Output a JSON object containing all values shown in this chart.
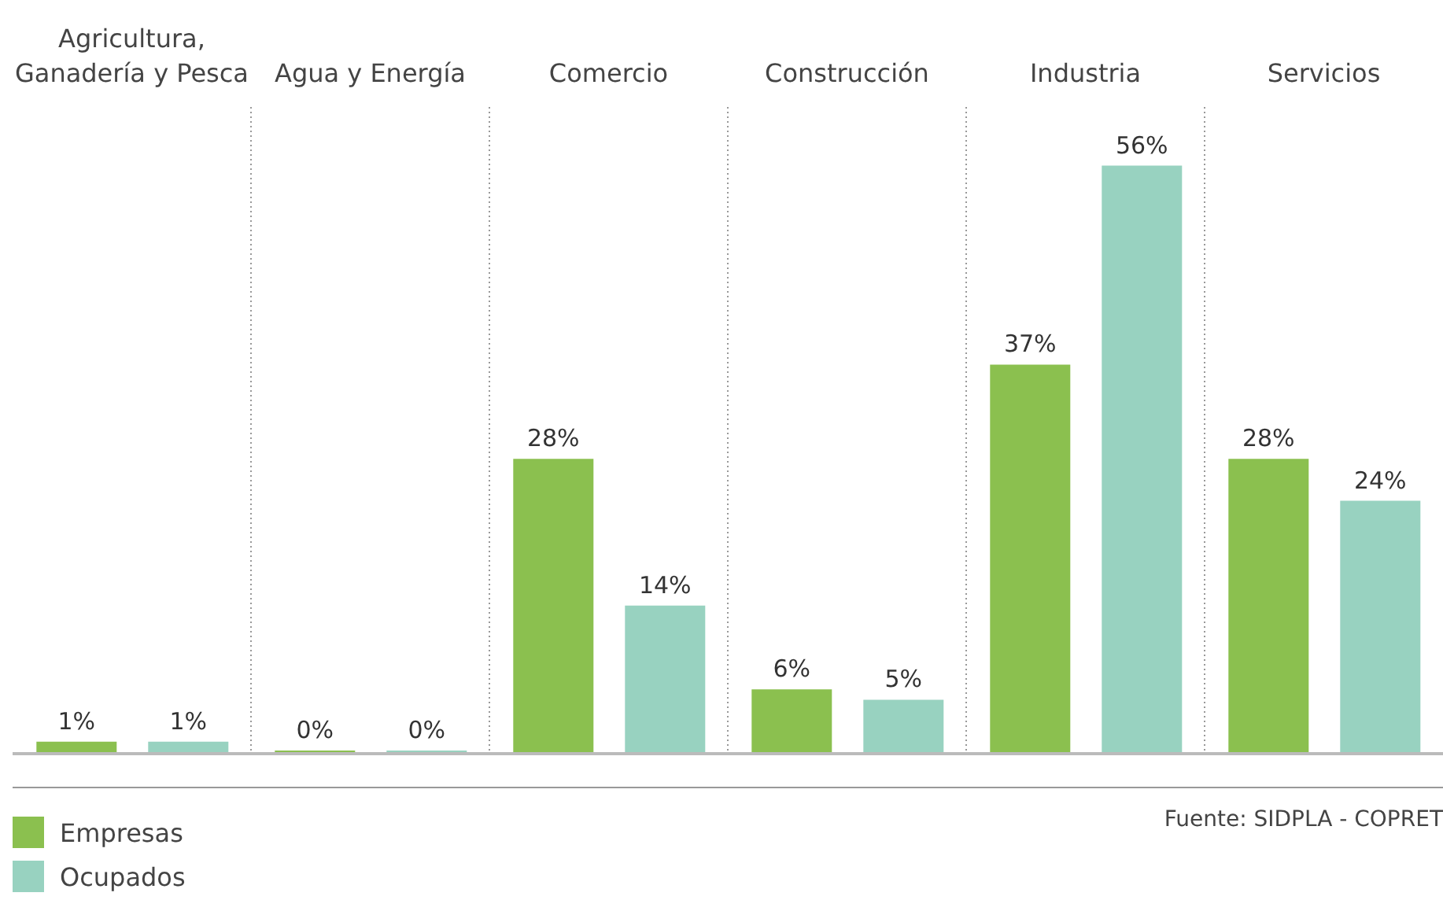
{
  "chart_data": {
    "type": "bar",
    "categories": [
      "Agricultura, Ganadería y Pesca",
      "Agua y Energía",
      "Comercio",
      "Construcción",
      "Industria",
      "Servicios"
    ],
    "series": [
      {
        "name": "Empresas",
        "color": "#8bc04f",
        "values": [
          1,
          0,
          28,
          6,
          37,
          28
        ],
        "value_labels": [
          "1%",
          "0%",
          "28%",
          "6%",
          "37%",
          "28%"
        ]
      },
      {
        "name": "Ocupados",
        "color": "#98d2c0",
        "values": [
          1,
          0,
          14,
          5,
          56,
          24
        ],
        "value_labels": [
          "1%",
          "0%",
          "14%",
          "5%",
          "56%",
          "24%"
        ]
      }
    ],
    "grid": "x",
    "legend": "bottom left",
    "annotations": [
      "Fuente: SIDPLA - COPRET"
    ]
  }
}
